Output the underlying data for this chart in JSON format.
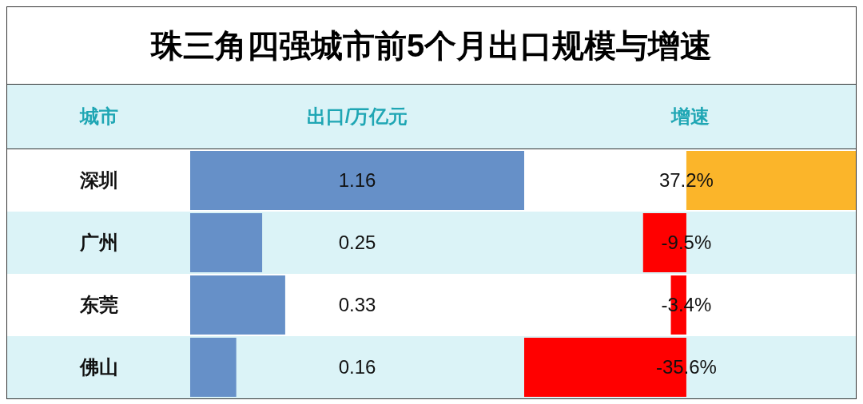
{
  "chart_data": [
    {
      "type": "bar",
      "orientation": "horizontal",
      "title": "珠三角四强城市前5个月出口规模与增速",
      "ylabel": "城市",
      "xlabel": "出口/万亿元",
      "categories": [
        "深圳",
        "广州",
        "东莞",
        "佛山"
      ],
      "values": [
        1.16,
        0.25,
        0.33,
        0.16
      ],
      "color": "#6690c8",
      "data_labels": true
    },
    {
      "type": "bar",
      "orientation": "horizontal",
      "xlabel": "增速",
      "categories": [
        null,
        null,
        null,
        null
      ],
      "values": [
        37.2,
        -9.5,
        -3.4,
        -35.6
      ],
      "colors": [
        "#fbb52a",
        "#ff0000",
        "#ff0000",
        "#ff0000"
      ],
      "value_labels": [
        "37.2%",
        "-9.5%",
        "-3.4%",
        "-35.6%"
      ]
    }
  ]
}
